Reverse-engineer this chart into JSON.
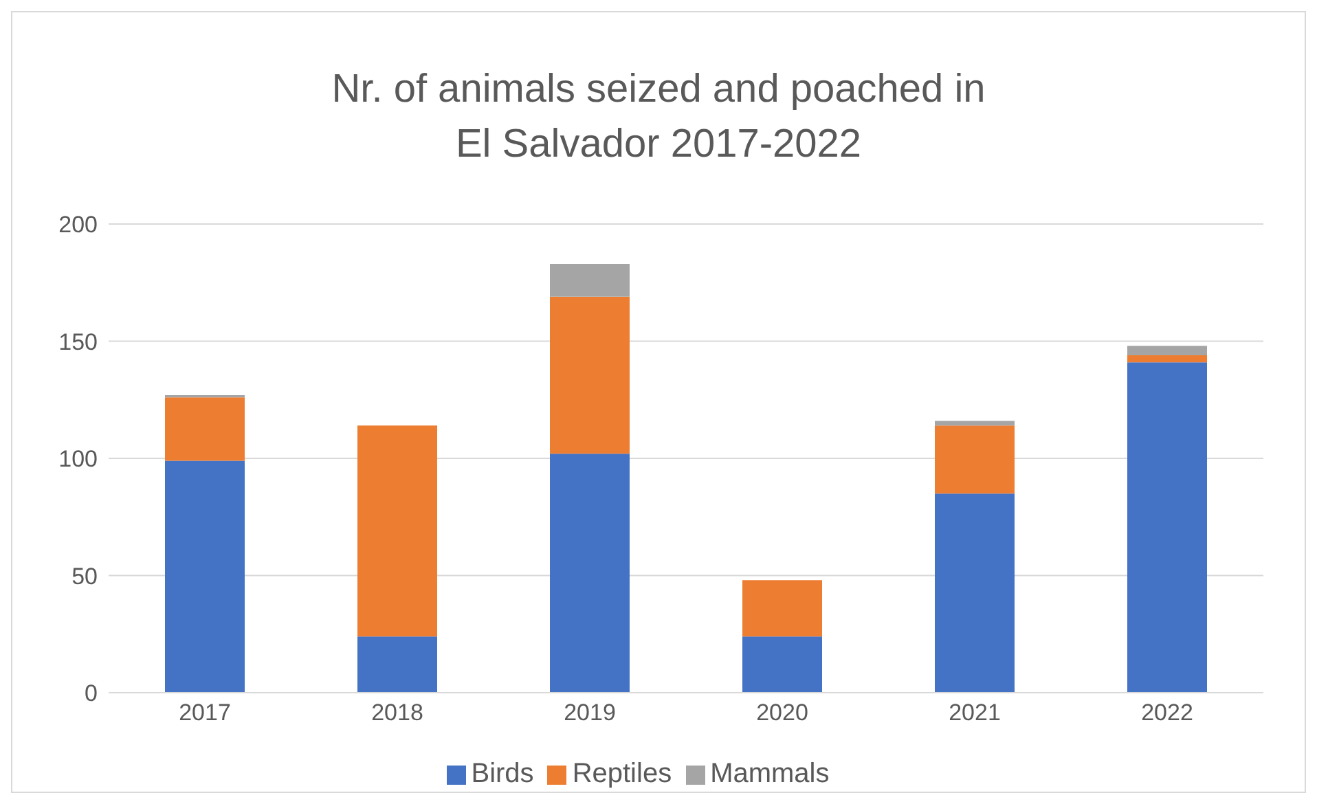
{
  "chart_data": {
    "type": "bar",
    "title": "Nr. of animals seized and poached in\nEl Salvador 2017-2022",
    "categories": [
      "2017",
      "2018",
      "2019",
      "2020",
      "2021",
      "2022"
    ],
    "stacked": true,
    "series": [
      {
        "name": "Birds",
        "color": "#4472c4",
        "values": [
          99,
          24,
          102,
          24,
          85,
          141
        ]
      },
      {
        "name": "Reptiles",
        "color": "#ed7d31",
        "values": [
          27,
          90,
          67,
          24,
          29,
          3
        ]
      },
      {
        "name": "Mammals",
        "color": "#a5a5a5",
        "values": [
          1,
          0,
          14,
          0,
          2,
          4
        ]
      }
    ],
    "ylim": [
      0,
      200
    ],
    "yticks": [
      0,
      50,
      100,
      150,
      200
    ],
    "grid": "y",
    "legend": "bottom"
  }
}
